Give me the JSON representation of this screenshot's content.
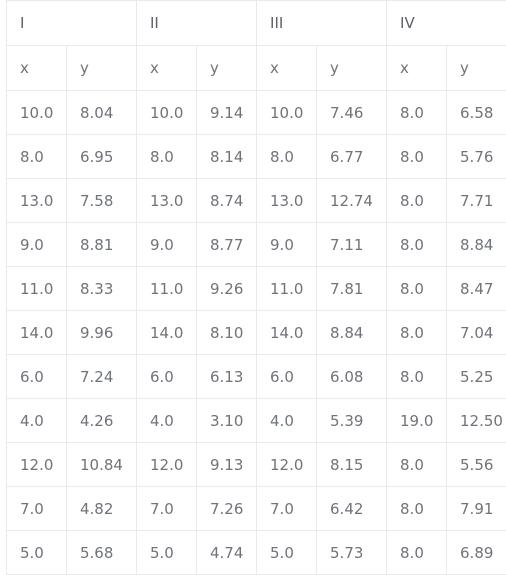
{
  "groups": [
    "I",
    "II",
    "III",
    "IV"
  ],
  "axis_labels": [
    "x",
    "y",
    "x",
    "y",
    "x",
    "y",
    "x",
    "y"
  ],
  "rows": [
    [
      "10.0",
      "8.04",
      "10.0",
      "9.14",
      "10.0",
      "7.46",
      "8.0",
      "6.58"
    ],
    [
      "8.0",
      "6.95",
      "8.0",
      "8.14",
      "8.0",
      "6.77",
      "8.0",
      "5.76"
    ],
    [
      "13.0",
      "7.58",
      "13.0",
      "8.74",
      "13.0",
      "12.74",
      "8.0",
      "7.71"
    ],
    [
      "9.0",
      "8.81",
      "9.0",
      "8.77",
      "9.0",
      "7.11",
      "8.0",
      "8.84"
    ],
    [
      "11.0",
      "8.33",
      "11.0",
      "9.26",
      "11.0",
      "7.81",
      "8.0",
      "8.47"
    ],
    [
      "14.0",
      "9.96",
      "14.0",
      "8.10",
      "14.0",
      "8.84",
      "8.0",
      "7.04"
    ],
    [
      "6.0",
      "7.24",
      "6.0",
      "6.13",
      "6.0",
      "6.08",
      "8.0",
      "5.25"
    ],
    [
      "4.0",
      "4.26",
      "4.0",
      "3.10",
      "4.0",
      "5.39",
      "19.0",
      "12.50"
    ],
    [
      "12.0",
      "10.84",
      "12.0",
      "9.13",
      "12.0",
      "8.15",
      "8.0",
      "5.56"
    ],
    [
      "7.0",
      "4.82",
      "7.0",
      "7.26",
      "7.0",
      "6.42",
      "8.0",
      "7.91"
    ],
    [
      "5.0",
      "5.68",
      "5.0",
      "4.74",
      "5.0",
      "5.73",
      "8.0",
      "6.89"
    ]
  ]
}
